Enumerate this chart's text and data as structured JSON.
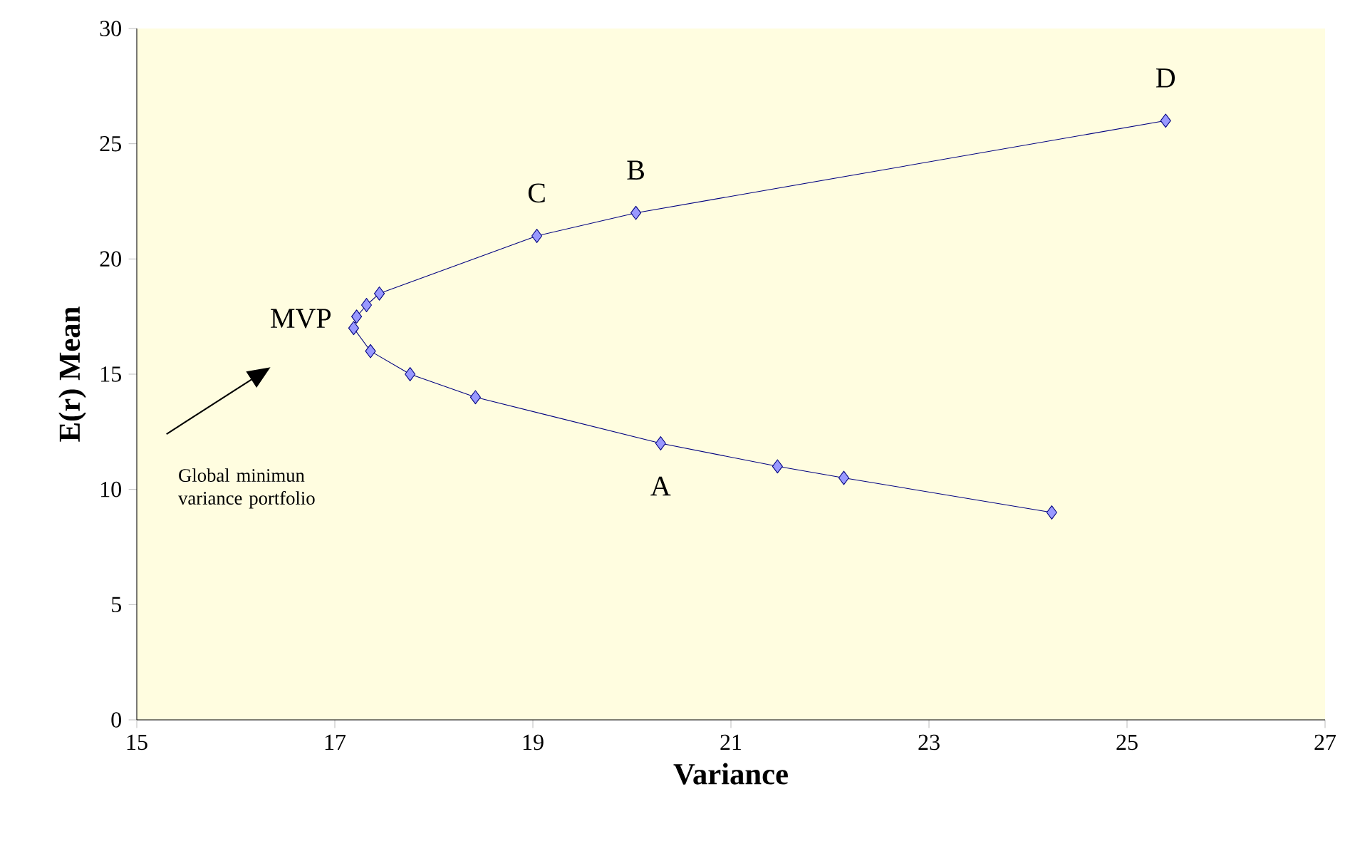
{
  "chart_data": {
    "type": "line",
    "xlabel": "Variance",
    "ylabel": "E(r) Mean",
    "series": [
      {
        "color": "#000080",
        "x": [
          24.24,
          22.14,
          21.47,
          20.29,
          18.42,
          17.76,
          17.36,
          17.19,
          17.22,
          17.32,
          17.45,
          19.04,
          20.04,
          25.39
        ],
        "values": [
          9.0,
          10.5,
          11.0,
          12.0,
          14.0,
          15.0,
          16.0,
          17.0,
          17.5,
          18.0,
          18.5,
          21.0,
          22.0,
          26.0
        ]
      }
    ],
    "marker": "diamond",
    "line_style": "solid",
    "grid": false,
    "xlim": [
      15,
      27
    ],
    "xticks": [
      15,
      17,
      19,
      21,
      23,
      25,
      27
    ],
    "ylim": [
      0,
      30
    ],
    "yticks": [
      0,
      5,
      10,
      15,
      20,
      25,
      30
    ],
    "annotations": [
      {
        "text": "A",
        "x": 20.29,
        "y": 12.0
      },
      {
        "text": "B",
        "x": 20.04,
        "y": 22.0
      },
      {
        "text": "C",
        "x": 19.04,
        "y": 21.0
      },
      {
        "text": "D",
        "x": 25.39,
        "y": 26.0
      },
      {
        "text": "MVP",
        "x": 17.19,
        "y": 17.0
      },
      "Global minimun variance portfolio"
    ]
  }
}
